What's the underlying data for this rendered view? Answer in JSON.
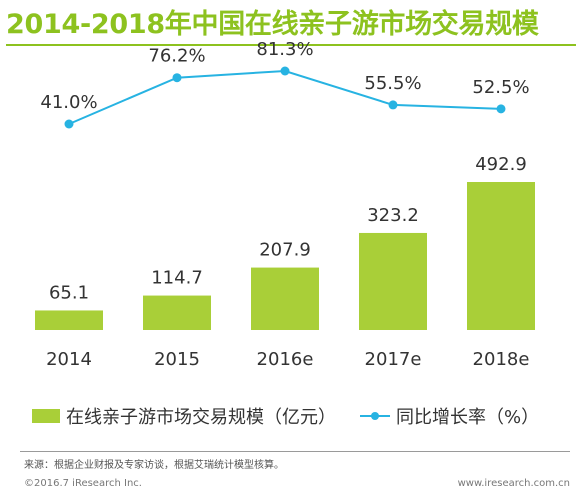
{
  "title": "2014-2018年中国在线亲子游市场交易规模",
  "colors": {
    "title": "#8dc21f",
    "bar": "#a9cf38",
    "line": "#27b3e2",
    "text": "#333333"
  },
  "chart_data": {
    "type": "bar",
    "title": "2014-2018年中国在线亲子游市场交易规模",
    "categories": [
      "2014",
      "2015",
      "2016e",
      "2017e",
      "2018e"
    ],
    "series": [
      {
        "name": "在线亲子游市场交易规模（亿元）",
        "type": "bar",
        "values": [
          65.1,
          114.7,
          207.9,
          323.2,
          492.9
        ],
        "labels": [
          "65.1",
          "114.7",
          "207.9",
          "323.2",
          "492.9"
        ]
      },
      {
        "name": "同比增长率（%）",
        "type": "line",
        "values": [
          41.0,
          76.2,
          81.3,
          55.5,
          52.5
        ],
        "labels": [
          "41.0%",
          "76.2%",
          "81.3%",
          "55.5%",
          "52.5%"
        ]
      }
    ],
    "grid": false,
    "legend": "bottom"
  },
  "legend": {
    "bar_label": "在线亲子游市场交易规模（亿元）",
    "line_label": "同比增长率（%）"
  },
  "footer": {
    "source": "来源：根据企业财报及专家访谈，根据艾瑞统计模型核算。",
    "copyright": "©2016.7 iResearch Inc.",
    "website": "www.iresearch.com.cn"
  }
}
